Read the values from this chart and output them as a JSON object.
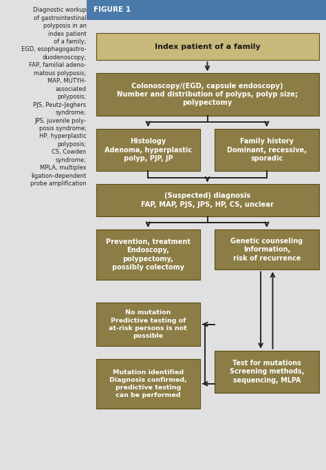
{
  "figure_title": "FIGURE 1",
  "title_bg": "#4a7aaa",
  "chart_bg": "#ffffff",
  "left_bg": "#e8e8e8",
  "page_bg": "#e0e0e0",
  "box_dark": "#8b7d45",
  "box_light": "#c8b87a",
  "border_dark": "#5a4a15",
  "arrow_color": "#222222",
  "left_text_color": "#222222",
  "left_text_lines": [
    "Diagnostic workup",
    "of gastrointestinal",
    "polyposis in an",
    "index patient",
    "of a family;",
    "EGD, esophagogastro-",
    "duodenoscopy;",
    "FAP, familial adeno-",
    "matous polyposis;",
    "MAP, MUTYH-",
    "associated",
    "polyposis;",
    "PJS, Peutz–Jeghers",
    "syndrome;",
    "JPS, juvenile poly-",
    "posis syndrome;",
    "HP, hyperplastic",
    "polyposis;",
    "CS, Cowden",
    "syndrome;",
    "MPLA, multiplex",
    "ligation-dependent",
    "probe amplification"
  ],
  "top_box_text": "Index patient of a family",
  "box1_text": "Colonoscopy/(EGD, capsule endoscopy)\nNumber and distribution of polyps, polyp size;\npolypectomy",
  "box2a_text": "Histology\nAdenoma, hyperplastic\npolyp, PJP, JP",
  "box2b_text": "Family history\nDominant, recessive,\nsporadic",
  "box3_text": "(Suspected) diagnosis\nFAP, MAP, PJS, JPS, HP, CS, unclear",
  "box4a_text": "Prevention, treatment\nEndoscopy,\npolypectomy,\npossibly colectomy",
  "box4b_text": "Genetic counseling\nInformation,\nrisk of recurrence",
  "box5_text": "No mutation\nPredictive testing of\nat-risk persons is not\npossible",
  "box6_text": "Test for mutations\nScreening methods,\nsequencing, MLPA",
  "box7_text": "Mutation identified\nDiagnosis confirmed,\npredictive testing\ncan be performed"
}
